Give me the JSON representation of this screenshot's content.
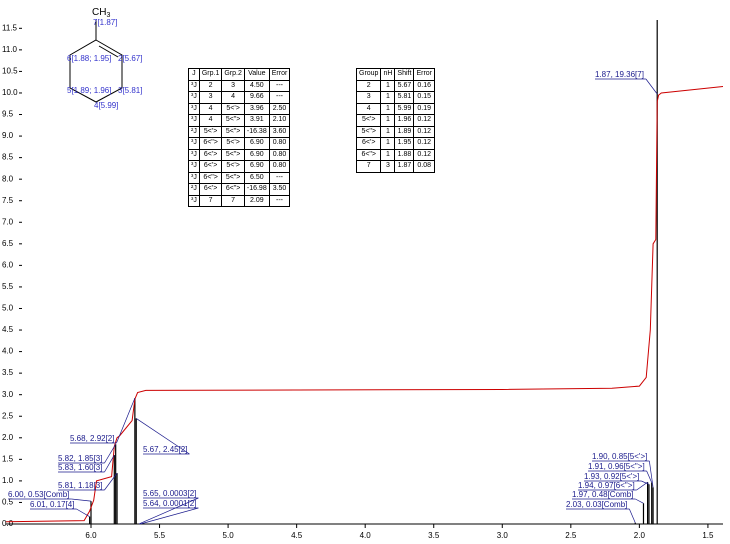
{
  "chart_data": {
    "type": "spectrum",
    "xlim": [
      6.62,
      1.39
    ],
    "ylim": [
      0,
      11.6
    ],
    "xticks": [
      {
        "value": 6,
        "label": "6.0"
      },
      5.5,
      {
        "value": 5,
        "label": "5.0"
      },
      4.5,
      {
        "value": 4,
        "label": "4.0"
      },
      3.5,
      {
        "value": 3,
        "label": "3.0"
      },
      2.5,
      {
        "value": 2,
        "label": "2.0"
      },
      1.5
    ],
    "yticks": [
      {
        "value": 0,
        "label": "0.0"
      },
      0.5,
      {
        "value": 1,
        "label": "1.0"
      },
      1.5,
      {
        "value": 2,
        "label": "2.0"
      },
      2.5,
      {
        "value": 3,
        "label": "3.0"
      },
      3.5,
      {
        "value": 4,
        "label": "4.0"
      },
      4.5,
      {
        "value": 5,
        "label": "5.0"
      },
      5.5,
      {
        "value": 6,
        "label": "6.0"
      },
      6.5,
      {
        "value": 7,
        "label": "7.0"
      },
      7.5,
      {
        "value": 8,
        "label": "8.0"
      },
      8.5,
      {
        "value": 9,
        "label": "9.0"
      },
      9.5,
      {
        "value": 10,
        "label": "10.0"
      },
      10.5,
      {
        "value": 11,
        "label": "11.0"
      },
      11.5
    ],
    "peaks": {
      "color": "#000000",
      "x": [
        6.01,
        6.0,
        5.81,
        5.83,
        5.82,
        5.68,
        5.67,
        5.65,
        5.64,
        1.9,
        1.91,
        1.93,
        1.94,
        1.97,
        2.03,
        1.87
      ],
      "values": [
        0.17,
        0.53,
        1.18,
        1.6,
        1.85,
        2.92,
        2.45,
        0.0003,
        0.0001,
        0.85,
        0.96,
        0.92,
        0.97,
        0.48,
        0.03,
        19.36
      ],
      "value_labels": [
        "6.01, 0.17[4]",
        "6.00, 0.53[Comb]",
        "5.81, 1.18[3]",
        "5.83, 1.60[3]",
        "5.82, 1.85[3]",
        "5.68, 2.92[2]",
        "5.67, 2.45[2]",
        "5.65, 0.0003[2]",
        "5.64, 0.0001[2]",
        "1.90, 0.85[5<'>]",
        "1.91, 0.96[5<\">]",
        "1.93, 0.92[5<'>]",
        "1.94, 0.97[6<\">]",
        "1.97, 0.48[Comb]",
        "2.03, 0.03[Comb]",
        "1.87, 19.36[7]"
      ]
    },
    "integral": {
      "color": "#cc0000",
      "x": [
        6.62,
        6.05,
        6.01,
        5.98,
        5.96,
        5.85,
        5.83,
        5.81,
        5.79,
        5.7,
        5.68,
        5.66,
        5.6,
        3.0,
        2.2,
        2.0,
        1.95,
        1.92,
        1.9,
        1.88,
        1.87,
        1.86,
        1.84,
        1.39
      ],
      "values": [
        0.05,
        0.08,
        0.3,
        0.55,
        1.0,
        1.1,
        1.8,
        2.0,
        2.05,
        2.4,
        2.9,
        3.05,
        3.1,
        3.12,
        3.15,
        3.2,
        3.4,
        4.5,
        6.5,
        6.6,
        9.8,
        9.95,
        10.0,
        10.15
      ]
    }
  },
  "molecule": {
    "methyl": {
      "main": "CH",
      "sub": "3"
    },
    "labels": [
      "7[1.87]",
      "6[1.88; 1.95]",
      "2[5.67]",
      "5[1.89; 1.96]",
      "3[5.81]",
      "4[5.99]"
    ]
  },
  "j_table": {
    "header": [
      "J",
      "Grp.1",
      "Grp.2",
      "Value",
      "Error"
    ],
    "rows": [
      [
        "³J",
        "2",
        "3",
        "4.50",
        "---"
      ],
      [
        "³J",
        "3",
        "4",
        "9.66",
        "---"
      ],
      [
        "³J",
        "4",
        "5<'>",
        "3.96",
        "2.50"
      ],
      [
        "³J",
        "4",
        "5<\">",
        "3.91",
        "2.10"
      ],
      [
        "²J",
        "5<'>",
        "5<\">",
        "-16.38",
        "3.60"
      ],
      [
        "³J",
        "6<\">",
        "5<'>",
        "6.90",
        "0.80"
      ],
      [
        "³J",
        "6<'>",
        "5<\">",
        "6.90",
        "0.80"
      ],
      [
        "³J",
        "6<'>",
        "5<'>",
        "6.90",
        "0.80"
      ],
      [
        "³J",
        "6<\">",
        "5<\">",
        "6.50",
        "---"
      ],
      [
        "²J",
        "6<'>",
        "6<\">",
        "-16.98",
        "3.50"
      ],
      [
        "³J",
        "7",
        "7",
        "2.09",
        "---"
      ]
    ]
  },
  "group_table": {
    "header": [
      "Group",
      "nH",
      "Shift",
      "Error"
    ],
    "rows": [
      [
        "2",
        "1",
        "5.67",
        "0.16"
      ],
      [
        "3",
        "1",
        "5.81",
        "0.15"
      ],
      [
        "4",
        "1",
        "5.99",
        "0.19"
      ],
      [
        "5<'>",
        "1",
        "1.96",
        "0.12"
      ],
      [
        "5<\">",
        "1",
        "1.89",
        "0.12"
      ],
      [
        "6<'>",
        "1",
        "1.95",
        "0.12"
      ],
      [
        "6<\">",
        "1",
        "1.88",
        "0.12"
      ],
      [
        "7",
        "3",
        "1.87",
        "0.08"
      ]
    ]
  }
}
